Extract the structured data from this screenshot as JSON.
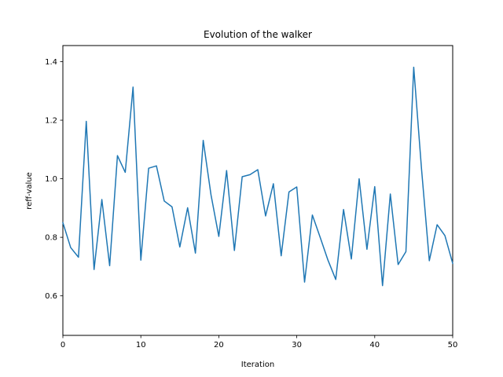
{
  "chart_data": {
    "type": "line",
    "title": "Evolution of the walker",
    "xlabel": "Iteration",
    "ylabel": "reff-value",
    "xlim": [
      0,
      50
    ],
    "ylim": [
      0.465,
      1.455
    ],
    "xticks": [
      0,
      10,
      20,
      30,
      40,
      50
    ],
    "yticks": [
      0.6,
      0.8,
      1.0,
      1.2,
      1.4
    ],
    "grid": false,
    "line_color": "#1f77b4",
    "series": [
      {
        "x": [
          0,
          1,
          2,
          3,
          4,
          5,
          6,
          7,
          8,
          9,
          10,
          11,
          12,
          13,
          14,
          15,
          16,
          17,
          18,
          19,
          20,
          21,
          22,
          23,
          24,
          25,
          26,
          27,
          28,
          29,
          30,
          31,
          32,
          33,
          34,
          35,
          36,
          37,
          38,
          39,
          40,
          41,
          42,
          43,
          44,
          45,
          46,
          47,
          48,
          49,
          50
        ],
        "values": [
          0.85,
          0.765,
          0.732,
          1.196,
          0.69,
          0.929,
          0.703,
          1.079,
          1.022,
          1.313,
          0.722,
          1.036,
          1.044,
          0.924,
          0.904,
          0.767,
          0.901,
          0.746,
          1.131,
          0.945,
          0.803,
          1.028,
          0.755,
          1.007,
          1.014,
          1.031,
          0.873,
          0.983,
          0.737,
          0.955,
          0.972,
          0.647,
          0.876,
          0.8,
          0.722,
          0.656,
          0.895,
          0.726,
          1.0,
          0.759,
          0.973,
          0.635,
          0.948,
          0.707,
          0.751,
          1.381,
          1.034,
          0.72,
          0.843,
          0.806,
          0.711
        ]
      }
    ]
  }
}
